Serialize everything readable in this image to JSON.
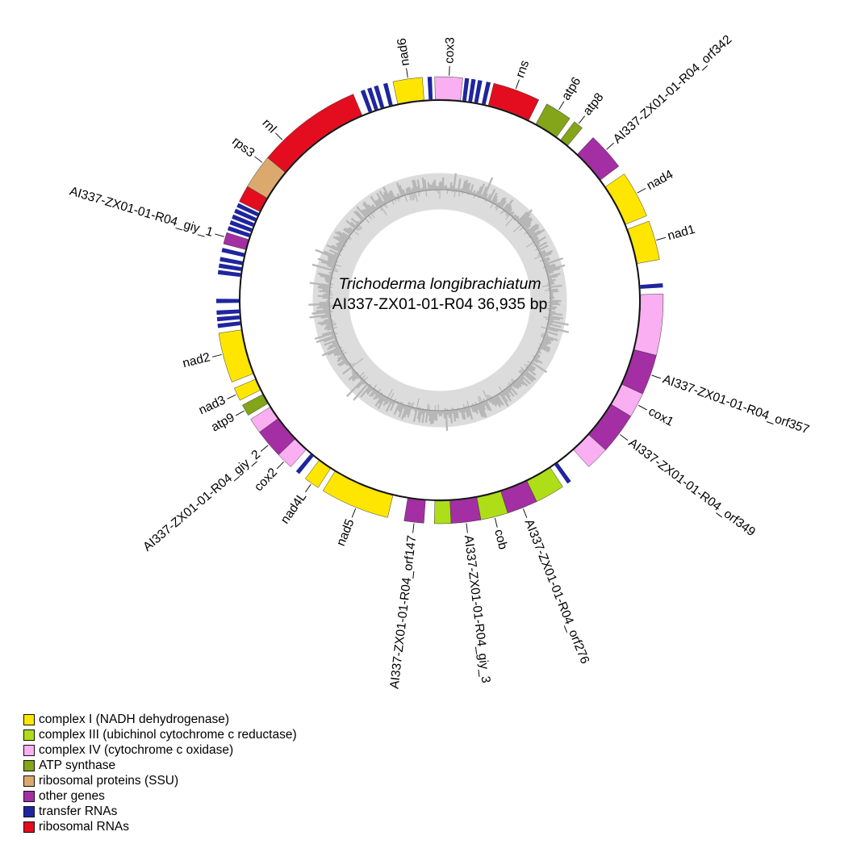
{
  "chart_data": {
    "type": "circular_genome_map",
    "organism": "Trichoderma longibrachiatum",
    "title_line2": "AI337-ZX01-01-R04 36,935 bp",
    "sequence_id": "AI337-ZX01-01-R04",
    "genome_length_bp": 36935,
    "angle_convention": "degrees clockwise from 12 o'clock",
    "inner_ring": {
      "description": "GC content histogram ring",
      "band_color": "#dcdcdc",
      "bar_color": "#b7b7b7",
      "midline_color": "#8e8e8e"
    },
    "backbone_color": "#111111",
    "categories": {
      "complex_i": {
        "label": "complex I (NADH dehydrogenase)",
        "color": "#FFE600"
      },
      "complex_iii": {
        "label": "complex III (ubichinol cytochrome c reductase)",
        "color": "#AEDE17"
      },
      "complex_iv": {
        "label": "complex IV (cytochrome c oxidase)",
        "color": "#F9AFF2"
      },
      "atp_synthase": {
        "label": "ATP synthase",
        "color": "#84A41A"
      },
      "ribosomal_protein": {
        "label": "ribosomal proteins (SSU)",
        "color": "#DBA96E"
      },
      "other": {
        "label": "other genes",
        "color": "#A42EA4"
      },
      "trna": {
        "label": "transfer RNAs",
        "color": "#1F259E"
      },
      "rrna": {
        "label": "ribosomal RNAs",
        "color": "#E30D1F"
      }
    },
    "legend_order": [
      "complex_i",
      "complex_iii",
      "complex_iv",
      "atp_synthase",
      "ribosomal_protein",
      "other",
      "trna",
      "rrna"
    ],
    "features": [
      {
        "name": "nad6",
        "category": "complex_i",
        "start": 347.9,
        "end": 355.5,
        "label": 351.8
      },
      {
        "name": "cox3",
        "category": "complex_iv",
        "start": 358.7,
        "end": 365.9,
        "label": 2.4
      },
      {
        "name": "rns",
        "category": "rrna",
        "start": 14.0,
        "end": 26.3,
        "label": 19.8
      },
      {
        "name": "atp6",
        "category": "atp_synthase",
        "start": 28.6,
        "end": 35.6,
        "label": 32.0
      },
      {
        "name": "atp8",
        "category": "atp_synthase",
        "start": 37.0,
        "end": 39.6,
        "label": 38.2
      },
      {
        "name": "AI337-ZX01-01-R04_orf342",
        "category": "other",
        "start": 43.3,
        "end": 53.2,
        "label": 47.9
      },
      {
        "name": "nad4",
        "category": "complex_i",
        "start": 55.6,
        "end": 67.8,
        "label": 61.5
      },
      {
        "name": "nad1",
        "category": "complex_i",
        "start": 69.3,
        "end": 79.5,
        "label": 74.5
      },
      {
        "name": "cox1",
        "category": "complex_iv",
        "start": 88.4,
        "end": 104.3,
        "label": null
      },
      {
        "name": "AI337-ZX01-01-R04_orf357",
        "category": "other",
        "start": 104.3,
        "end": 114.8,
        "label": 109.5
      },
      {
        "name": "cox1",
        "category": "complex_iv",
        "start": 114.8,
        "end": 121.3,
        "label": 117.9
      },
      {
        "name": "AI337-ZX01-01-R04_orf349",
        "category": "other",
        "start": 121.3,
        "end": 132.1,
        "label": 126.7
      },
      {
        "name": "cox1",
        "category": "complex_iv",
        "start": 132.1,
        "end": 138.2,
        "label": null
      },
      {
        "name": "cob",
        "category": "complex_iii",
        "start": 146.6,
        "end": 154.3,
        "label": null
      },
      {
        "name": "AI337-ZX01-01-R04_orf276",
        "category": "other",
        "start": 154.3,
        "end": 162.3,
        "label": 158.2
      },
      {
        "name": "cob",
        "category": "complex_iii",
        "start": 162.3,
        "end": 169.4,
        "label": 165.8
      },
      {
        "name": "AI337-ZX01-01-R04_giy_3",
        "category": "other",
        "start": 169.4,
        "end": 177.1,
        "label": 173.2
      },
      {
        "name": "cob",
        "category": "complex_iii",
        "start": 177.1,
        "end": 181.4,
        "label": null
      },
      {
        "name": "AI337-ZX01-01-R04_orf147",
        "category": "other",
        "start": 184.1,
        "end": 189.2,
        "label": 186.6
      },
      {
        "name": "nad5",
        "category": "complex_i",
        "start": 193.5,
        "end": 211.5,
        "label": 202.0
      },
      {
        "name": "nad4L",
        "category": "complex_i",
        "start": 213.0,
        "end": 217.0,
        "label": 215.0
      },
      {
        "name": "cox2",
        "category": "complex_iv",
        "start": 221.8,
        "end": 226.2,
        "label": 224.0
      },
      {
        "name": "AI337-ZX01-01-R04_giy_2",
        "category": "other",
        "start": 226.2,
        "end": 233.8,
        "label": 229.8
      },
      {
        "name": "cox2",
        "category": "complex_iv",
        "start": 233.8,
        "end": 237.8,
        "label": null
      },
      {
        "name": "atp9",
        "category": "atp_synthase",
        "start": 239.0,
        "end": 242.0,
        "label": 240.5
      },
      {
        "name": "nad3",
        "category": "complex_i",
        "start": 243.4,
        "end": 246.8,
        "label": 245.1
      },
      {
        "name": "nad2",
        "category": "complex_i",
        "start": 248.5,
        "end": 261.5,
        "label": 256.0
      },
      {
        "name": "AI337-ZX01-01-R04_giy_1",
        "category": "other",
        "start": 284.6,
        "end": 287.6,
        "label": 286.4
      },
      {
        "name": "rnl",
        "category": "rrna",
        "start": 296.2,
        "end": 300.6,
        "label": null
      },
      {
        "name": "rps3",
        "category": "ribosomal_protein",
        "start": 300.6,
        "end": 309.6,
        "label": 307.8
      },
      {
        "name": "rnl",
        "category": "rrna",
        "start": 309.6,
        "end": 337.2,
        "label": 315.5
      }
    ],
    "trna_ticks_deg": [
      7.0,
      8.7,
      10.4,
      12.6,
      86.2,
      144.6,
      219.5,
      263.4,
      265.1,
      266.8,
      269.8,
      277.2,
      278.9,
      280.6,
      283.0,
      288.8,
      290.4,
      292.0,
      293.6,
      295.2,
      339.8,
      341.6,
      343.4,
      345.9,
      357.4
    ]
  }
}
